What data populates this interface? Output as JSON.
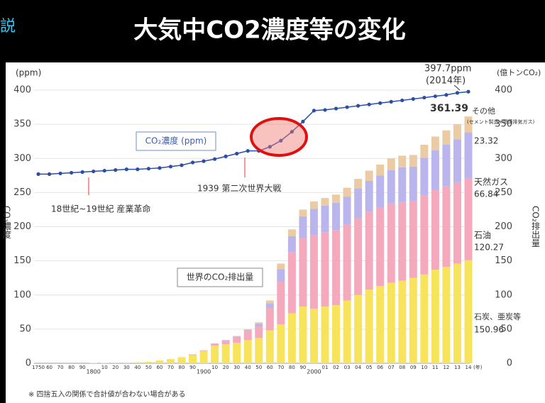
{
  "header": {
    "side_text": "説",
    "title": "大気中CO2濃度等の変化"
  },
  "chart_data": {
    "type": "bar",
    "categories": [
      "1750",
      "60",
      "70",
      "80",
      "90",
      "1800",
      "10",
      "20",
      "30",
      "40",
      "50",
      "60",
      "70",
      "80",
      "90",
      "1900",
      "10",
      "20",
      "30",
      "40",
      "50",
      "60",
      "70",
      "80",
      "90",
      "2000",
      "01",
      "02",
      "03",
      "04",
      "05",
      "06",
      "07",
      "08",
      "09",
      "10",
      "11",
      "12",
      "13",
      "14"
    ],
    "x_unit": "(年)",
    "ylabel_unit": "(ppm)",
    "ylabel": "CO₂濃度",
    "y2label_unit": "(億トンCO₂)",
    "y2label": "CO₂排出量",
    "ylim": [
      0,
      400
    ],
    "yticks": [
      0,
      50,
      100,
      150,
      200,
      250,
      300,
      350,
      400
    ],
    "y2lim": [
      0,
      400
    ],
    "y2ticks": [
      0,
      50,
      100,
      150,
      200,
      250,
      300,
      350,
      400
    ],
    "grid": true,
    "stacked": true,
    "series": [
      {
        "name": "石炭、亜炭等",
        "color": "#f7e45c",
        "axis": "y2",
        "values": [
          0,
          0,
          0,
          0,
          0,
          0.5,
          0.5,
          1,
          1,
          1.5,
          2,
          4,
          6,
          9,
          12,
          18,
          26,
          28,
          30,
          34,
          37,
          48,
          57,
          73,
          83,
          80,
          83,
          85,
          92,
          100,
          108,
          113,
          118,
          121,
          125,
          130,
          137,
          141,
          146,
          150.96
        ]
      },
      {
        "name": "石油",
        "color": "#f5a9bc",
        "axis": "y2",
        "values": [
          0,
          0,
          0,
          0,
          0,
          0,
          0,
          0,
          0,
          0,
          0,
          0,
          0,
          0,
          1,
          1,
          3,
          5,
          8,
          13,
          17,
          33,
          63,
          90,
          100,
          108,
          109,
          110,
          111,
          113,
          114,
          115,
          116,
          115,
          113,
          116,
          117,
          118,
          119,
          120.27
        ]
      },
      {
        "name": "天然ガス",
        "color": "#bab5ec",
        "axis": "y2",
        "values": [
          0,
          0,
          0,
          0,
          0,
          0,
          0,
          0,
          0,
          0,
          0,
          0,
          0,
          0,
          0,
          0,
          0,
          1,
          1,
          2,
          4,
          7,
          18,
          23,
          32,
          38,
          39,
          40,
          41,
          43,
          45,
          47,
          49,
          51,
          50,
          55,
          58,
          61,
          63,
          66.84
        ]
      },
      {
        "name": "その他",
        "color": "#ebcba3",
        "axis": "y2",
        "values": [
          0,
          0,
          0,
          0,
          0,
          0,
          0,
          0,
          0,
          0,
          0,
          0,
          0,
          0,
          0,
          0,
          0,
          0,
          1,
          1,
          2,
          4,
          8,
          10,
          10,
          11,
          11,
          12,
          13,
          14,
          15,
          16,
          17,
          17,
          17,
          19,
          20,
          21,
          22,
          23.32
        ]
      },
      {
        "name": "CO₂濃度 (ppm)",
        "type": "line",
        "color": "#2a4ea6",
        "axis": "y",
        "values": [
          277,
          277,
          278,
          279,
          280,
          281,
          282,
          283,
          284,
          284,
          285,
          286,
          288,
          290,
          294,
          296,
          299,
          303,
          307,
          311,
          311,
          317,
          326,
          339,
          354,
          370,
          371,
          373,
          375,
          377,
          379,
          381,
          383,
          385,
          387,
          389,
          391,
          393,
          396,
          397.7
        ]
      }
    ],
    "annotations": {
      "ppm_2014": "397.7ppm",
      "year_2014": "(2014年)",
      "industrial": "18世紀~19世紀 産業革命",
      "ww2": "1939 第二次世界大戦",
      "emission_label": "世界のCO₂排出量",
      "total": "361.39",
      "other_note": "(セメント製造+燃焼排気ガス)"
    },
    "note": "※ 四捨五入の関係で合計値が合わない場合がある"
  }
}
